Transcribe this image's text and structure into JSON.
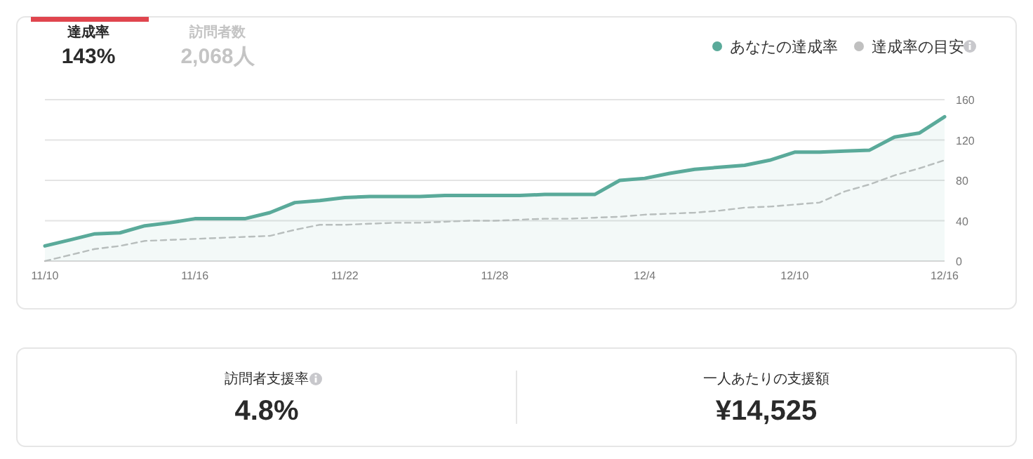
{
  "chart_data": [
    {
      "type": "line",
      "annotations": [
        "達成率",
        "143%",
        "訪問者数",
        "2,068人"
      ],
      "x": [
        "--11-10",
        "--11-11",
        "--11-12",
        "--11-13",
        "--11-14",
        "--11-15",
        "--11-16",
        "--11-17",
        "--11-18",
        "--11-19",
        "--11-20",
        "--11-21",
        "--11-22",
        "--11-23",
        "--11-24",
        "--11-25",
        "--11-26",
        "--11-27",
        "--11-28",
        "--11-29",
        "--11-30",
        "--12-01",
        "--12-02",
        "--12-03",
        "--12-04",
        "--12-05",
        "--12-06",
        "--12-07",
        "--12-08",
        "--12-09",
        "--12-10",
        "--12-11",
        "--12-12",
        "--12-13",
        "--12-14",
        "--12-15",
        "--12-16"
      ],
      "series": [
        {
          "name": "あなたの達成率",
          "type": "area",
          "color": "#5aaa9a",
          "line_style": "solid",
          "values": [
            15,
            21,
            27,
            28,
            35,
            38,
            42,
            42,
            42,
            48,
            58,
            60,
            63,
            64,
            64,
            64,
            65,
            65,
            65,
            65,
            66,
            66,
            66,
            80,
            82,
            87,
            91,
            93,
            95,
            100,
            108,
            108,
            109,
            110,
            123,
            127,
            143
          ]
        },
        {
          "name": "達成率の目安",
          "type": "line",
          "color": "#c0c0c0",
          "line_style": "dashed",
          "values": [
            0,
            6,
            12,
            15,
            20,
            21,
            22,
            23,
            24,
            25,
            31,
            36,
            36,
            37,
            38,
            38,
            39,
            40,
            40,
            41,
            42,
            42,
            43,
            44,
            46,
            47,
            48,
            50,
            53,
            54,
            56,
            58,
            69,
            76,
            85,
            92,
            100
          ]
        }
      ],
      "xlim": [
        "--11-10",
        "--12-16"
      ],
      "xticks": [
        {
          "value": "--11-10",
          "label": "11/10"
        },
        {
          "value": "--11-16",
          "label": "11/16"
        },
        {
          "value": "--11-22",
          "label": "11/22"
        },
        {
          "value": "--11-28",
          "label": "11/28"
        },
        {
          "value": "--12-04",
          "label": "12/4"
        },
        {
          "value": "--12-10",
          "label": "12/10"
        },
        {
          "value": "--12-16",
          "label": "12/16"
        }
      ],
      "ylim": [
        0,
        160
      ],
      "yticks": [
        0,
        40,
        80,
        120,
        160
      ],
      "grid": "y",
      "legend": "top right"
    },
    {
      "type": "other",
      "annotations": [
        "訪問者支援率",
        "4.8%",
        "一人あたりの支援額",
        "¥14,525"
      ]
    }
  ]
}
